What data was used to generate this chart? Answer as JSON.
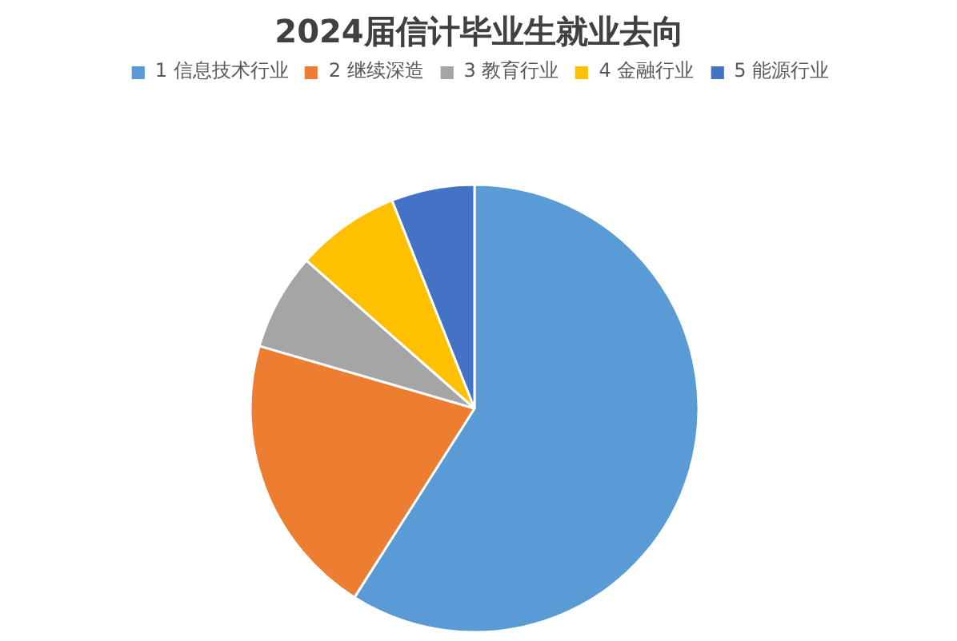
{
  "chart_data": {
    "type": "pie",
    "title": "2024届信计毕业生就业去向",
    "categories": [
      "1 信息技术行业",
      "2 继续深造",
      "3 教育行业",
      "4 金融行业",
      "5 能源行业"
    ],
    "values": [
      59,
      20.5,
      7,
      7.5,
      6
    ],
    "colors": [
      "#5b9bd5",
      "#ed7d31",
      "#a5a5a5",
      "#ffc000",
      "#4472c4"
    ],
    "legend": "top"
  }
}
